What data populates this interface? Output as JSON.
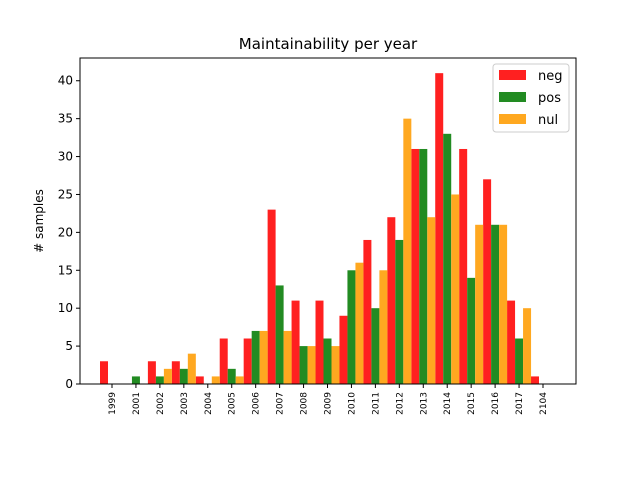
{
  "chart_data": {
    "type": "bar",
    "title": "Maintainability per year",
    "xlabel": "",
    "ylabel": "# samples",
    "ylim": [
      0,
      43
    ],
    "yticks": [
      0,
      5,
      10,
      15,
      20,
      25,
      30,
      35,
      40
    ],
    "categories": [
      "1999",
      "2001",
      "2002",
      "2003",
      "2004",
      "2005",
      "2006",
      "2007",
      "2008",
      "2009",
      "2010",
      "2011",
      "2012",
      "2013",
      "2014",
      "2015",
      "2016",
      "2017",
      "2104"
    ],
    "series": [
      {
        "name": "neg",
        "color": "#ff2020",
        "values": [
          3,
          0,
          3,
          3,
          1,
          6,
          6,
          23,
          11,
          11,
          9,
          19,
          22,
          31,
          41,
          31,
          27,
          11,
          1
        ]
      },
      {
        "name": "pos",
        "color": "#228b22",
        "values": [
          0,
          1,
          1,
          2,
          0,
          2,
          7,
          13,
          5,
          6,
          15,
          10,
          19,
          31,
          33,
          14,
          21,
          6,
          0
        ]
      },
      {
        "name": "nul",
        "color": "#ffa820",
        "values": [
          0,
          0,
          2,
          4,
          1,
          1,
          7,
          7,
          5,
          5,
          16,
          15,
          35,
          22,
          25,
          21,
          21,
          10,
          0
        ]
      }
    ],
    "legend_position": "top-right",
    "grid": false
  }
}
